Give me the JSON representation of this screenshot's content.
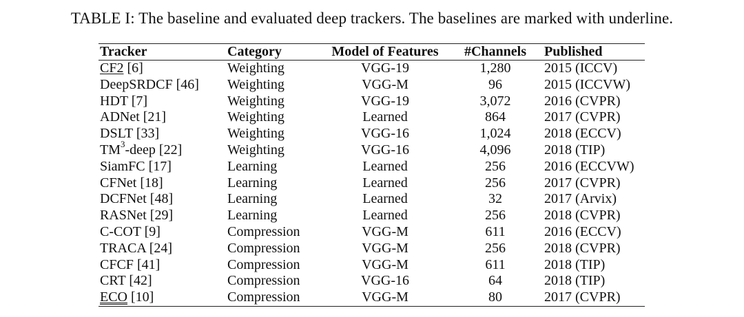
{
  "caption": "TABLE I: The baseline and evaluated deep trackers. The baselines are marked with underline.",
  "headers": [
    "Tracker",
    "Category",
    "Model of Features",
    "#Channels",
    "Published"
  ],
  "rows": [
    {
      "name": "CF2",
      "ref": " [6]",
      "underline": "single",
      "category": "Weighting",
      "model": "VGG-19",
      "channels": "1,280",
      "published": "2015 (ICCV)"
    },
    {
      "name": "DeepSRDCF",
      "ref": " [46]",
      "category": "Weighting",
      "model": "VGG-M",
      "channels": "96",
      "published": "2015 (ICCVW)"
    },
    {
      "name": "HDT",
      "ref": " [7]",
      "category": "Weighting",
      "model": "VGG-19",
      "channels": "3,072",
      "published": "2016 (CVPR)"
    },
    {
      "name": "ADNet",
      "ref": " [21]",
      "category": "Weighting",
      "model": "Learned",
      "channels": "864",
      "published": "2017 (CVPR)"
    },
    {
      "name": "DSLT",
      "ref": " [33]",
      "category": "Weighting",
      "model": "VGG-16",
      "channels": "1,024",
      "published": "2018 (ECCV)"
    },
    {
      "name": "TM",
      "sup": "3",
      "suffix": "-deep",
      "ref": " [22]",
      "category": "Weighting",
      "model": "VGG-16",
      "channels": "4,096",
      "published": "2018 (TIP)"
    },
    {
      "name": "SiamFC",
      "ref": " [17]",
      "category": "Learning",
      "model": "Learned",
      "channels": "256",
      "published": "2016 (ECCVW)"
    },
    {
      "name": "CFNet",
      "ref": " [18]",
      "category": "Learning",
      "model": "Learned",
      "channels": "256",
      "published": "2017 (CVPR)"
    },
    {
      "name": "DCFNet",
      "ref": " [48]",
      "category": "Learning",
      "model": "Learned",
      "channels": "32",
      "published": "2017 (Arvix)"
    },
    {
      "name": "RASNet",
      "ref": " [29]",
      "category": "Learning",
      "model": "Learned",
      "channels": "256",
      "published": "2018 (CVPR)"
    },
    {
      "name": "C-COT",
      "ref": " [9]",
      "category": "Compression",
      "model": "VGG-M",
      "channels": "611",
      "published": "2016 (ECCV)"
    },
    {
      "name": "TRACA",
      "ref": " [24]",
      "category": "Compression",
      "model": "VGG-M",
      "channels": "256",
      "published": "2018 (CVPR)"
    },
    {
      "name": "CFCF",
      "ref": " [41]",
      "category": "Compression",
      "model": "VGG-M",
      "channels": "611",
      "published": "2018 (TIP)"
    },
    {
      "name": "CRT",
      "ref": " [42]",
      "category": "Compression",
      "model": "VGG-16",
      "channels": "64",
      "published": "2018 (TIP)"
    },
    {
      "name": "ECO",
      "ref": " [10]",
      "underline": "double",
      "category": "Compression",
      "model": "VGG-M",
      "channels": "80",
      "published": "2017 (CVPR)"
    }
  ]
}
